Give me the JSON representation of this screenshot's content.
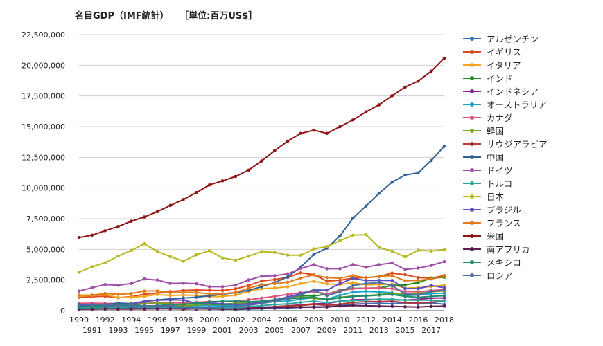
{
  "chart_data": {
    "type": "line",
    "title": "名目GDP（IMF統計）",
    "unit_label": "［単位:百万US$］",
    "xlabel": "",
    "ylabel": "",
    "ylim": [
      0,
      22500000
    ],
    "yticks": [
      0,
      2500000,
      5000000,
      7500000,
      10000000,
      12500000,
      15000000,
      17500000,
      20000000,
      22500000
    ],
    "ytick_labels": [
      "0",
      "2,500,000",
      "5,000,000",
      "7,500,000",
      "10,000,000",
      "12,500,000",
      "15,000,000",
      "17,500,000",
      "20,000,000",
      "22,500,000"
    ],
    "grid": true,
    "legend_position": "right",
    "x": [
      "1990",
      "1991",
      "1992",
      "1993",
      "1994",
      "1995",
      "1996",
      "1997",
      "1998",
      "1999",
      "2000",
      "2001",
      "2002",
      "2003",
      "2004",
      "2005",
      "2006",
      "2007",
      "2008",
      "2009",
      "2010",
      "2011",
      "2012",
      "2013",
      "2014",
      "2015",
      "2016",
      "2017",
      "2018"
    ],
    "series": [
      {
        "name": "アルゼンチン",
        "color": "#3a6fb4",
        "values": [
          141000,
          189000,
          229000,
          237000,
          257000,
          258000,
          272000,
          293000,
          299000,
          284000,
          284000,
          269000,
          98000,
          128000,
          153000,
          183000,
          214000,
          263000,
          329000,
          308000,
          424000,
          528000,
          580000,
          611000,
          564000,
          643000,
          555000,
          643000,
          518000
        ]
      },
      {
        "name": "イギリス",
        "color": "#dc4a1f",
        "values": [
          1090000,
          1140000,
          1180000,
          1060000,
          1140000,
          1340000,
          1420000,
          1560000,
          1650000,
          1690000,
          1660000,
          1640000,
          1780000,
          2050000,
          2420000,
          2540000,
          2710000,
          3090000,
          2930000,
          2410000,
          2480000,
          2660000,
          2700000,
          2780000,
          3060000,
          2930000,
          2690000,
          2660000,
          2860000
        ]
      },
      {
        "name": "イタリア",
        "color": "#f2a51e",
        "values": [
          1180000,
          1240000,
          1320000,
          1070000,
          1100000,
          1170000,
          1310000,
          1240000,
          1270000,
          1250000,
          1140000,
          1160000,
          1270000,
          1570000,
          1800000,
          1850000,
          1950000,
          2210000,
          2400000,
          2190000,
          2130000,
          2290000,
          2090000,
          2140000,
          2160000,
          1840000,
          1880000,
          1960000,
          2080000
        ]
      },
      {
        "name": "インド",
        "color": "#1b8a1b",
        "values": [
          320000,
          270000,
          290000,
          280000,
          330000,
          370000,
          400000,
          420000,
          420000,
          460000,
          470000,
          490000,
          520000,
          610000,
          710000,
          830000,
          940000,
          1220000,
          1200000,
          1340000,
          1680000,
          1820000,
          1830000,
          1860000,
          2040000,
          2100000,
          2290000,
          2650000,
          2720000
        ]
      },
      {
        "name": "インドネシア",
        "color": "#8b1f8b",
        "values": [
          130000,
          150000,
          160000,
          180000,
          200000,
          230000,
          250000,
          240000,
          110000,
          170000,
          180000,
          170000,
          210000,
          260000,
          280000,
          310000,
          400000,
          470000,
          560000,
          580000,
          760000,
          890000,
          920000,
          910000,
          890000,
          860000,
          930000,
          1020000,
          1040000
        ]
      },
      {
        "name": "オーストラリア",
        "color": "#19a2c8",
        "values": [
          320000,
          320000,
          320000,
          310000,
          340000,
          370000,
          410000,
          430000,
          380000,
          400000,
          420000,
          390000,
          420000,
          530000,
          660000,
          740000,
          780000,
          950000,
          1060000,
          930000,
          1250000,
          1510000,
          1560000,
          1530000,
          1460000,
          1240000,
          1270000,
          1390000,
          1430000
        ]
      },
      {
        "name": "カナダ",
        "color": "#e0527e",
        "values": [
          600000,
          610000,
          590000,
          580000,
          580000,
          600000,
          630000,
          650000,
          630000,
          680000,
          740000,
          740000,
          760000,
          890000,
          1020000,
          1170000,
          1320000,
          1470000,
          1550000,
          1370000,
          1610000,
          1790000,
          1830000,
          1850000,
          1800000,
          1560000,
          1530000,
          1650000,
          1710000
        ]
      },
      {
        "name": "韓国",
        "color": "#7ba41e",
        "values": [
          280000,
          330000,
          360000,
          390000,
          460000,
          570000,
          610000,
          570000,
          380000,
          490000,
          560000,
          530000,
          610000,
          680000,
          760000,
          900000,
          1010000,
          1120000,
          1000000,
          900000,
          1090000,
          1200000,
          1220000,
          1310000,
          1410000,
          1380000,
          1410000,
          1530000,
          1620000
        ]
      },
      {
        "name": "サウジアラビア",
        "color": "#b13434",
        "values": [
          120000,
          130000,
          140000,
          130000,
          130000,
          140000,
          160000,
          170000,
          150000,
          160000,
          190000,
          180000,
          190000,
          210000,
          260000,
          330000,
          380000,
          420000,
          520000,
          430000,
          530000,
          670000,
          740000,
          750000,
          760000,
          650000,
          640000,
          690000,
          780000
        ]
      },
      {
        "name": "中国",
        "color": "#336199",
        "values": [
          400000,
          420000,
          490000,
          620000,
          570000,
          740000,
          870000,
          970000,
          1030000,
          1100000,
          1210000,
          1340000,
          1470000,
          1660000,
          1960000,
          2290000,
          2750000,
          3550000,
          4590000,
          5100000,
          6090000,
          7550000,
          8530000,
          9570000,
          10480000,
          11060000,
          11230000,
          12240000,
          13410000
        ]
      },
      {
        "name": "ドイツ",
        "color": "#a04fa8",
        "values": [
          1600000,
          1870000,
          2130000,
          2070000,
          2210000,
          2590000,
          2500000,
          2220000,
          2240000,
          2200000,
          1950000,
          1950000,
          2080000,
          2500000,
          2810000,
          2850000,
          3000000,
          3440000,
          3750000,
          3420000,
          3420000,
          3760000,
          3540000,
          3750000,
          3890000,
          3360000,
          3470000,
          3690000,
          4000000
        ]
      },
      {
        "name": "トルコ",
        "color": "#2ba6a0",
        "values": [
          210000,
          200000,
          210000,
          240000,
          180000,
          230000,
          240000,
          250000,
          270000,
          250000,
          270000,
          200000,
          240000,
          310000,
          410000,
          500000,
          550000,
          680000,
          770000,
          650000,
          770000,
          830000,
          870000,
          950000,
          930000,
          860000,
          860000,
          850000,
          780000
        ]
      },
      {
        "name": "日本",
        "color": "#b8b820",
        "values": [
          3130000,
          3580000,
          3910000,
          4450000,
          4910000,
          5450000,
          4830000,
          4410000,
          4030000,
          4560000,
          4890000,
          4300000,
          4120000,
          4450000,
          4820000,
          4760000,
          4530000,
          4520000,
          5040000,
          5230000,
          5700000,
          6160000,
          6200000,
          5160000,
          4850000,
          4390000,
          4930000,
          4860000,
          4970000
        ]
      },
      {
        "name": "ブラジル",
        "color": "#5b4fc0",
        "values": [
          460000,
          400000,
          380000,
          430000,
          560000,
          770000,
          850000,
          880000,
          860000,
          600000,
          650000,
          560000,
          510000,
          560000,
          670000,
          890000,
          1110000,
          1400000,
          1690000,
          1670000,
          2210000,
          2620000,
          2460000,
          2470000,
          2460000,
          1800000,
          1800000,
          2060000,
          1870000
        ]
      },
      {
        "name": "フランス",
        "color": "#e07b1a",
        "values": [
          1270000,
          1270000,
          1400000,
          1330000,
          1390000,
          1600000,
          1610000,
          1460000,
          1510000,
          1490000,
          1360000,
          1380000,
          1490000,
          1840000,
          2120000,
          2200000,
          2320000,
          2660000,
          2920000,
          2690000,
          2650000,
          2860000,
          2680000,
          2810000,
          2850000,
          2440000,
          2470000,
          2590000,
          2780000
        ]
      },
      {
        "name": "米国",
        "color": "#8e1515",
        "values": [
          5960000,
          6160000,
          6520000,
          6860000,
          7290000,
          7640000,
          8070000,
          8580000,
          9060000,
          9630000,
          10250000,
          10580000,
          10940000,
          11460000,
          12210000,
          13040000,
          13820000,
          14450000,
          14710000,
          14450000,
          14990000,
          15540000,
          16200000,
          16780000,
          17520000,
          18220000,
          18710000,
          19520000,
          20580000
        ]
      },
      {
        "name": "南アフリカ",
        "color": "#5c1b52",
        "values": [
          120000,
          130000,
          140000,
          140000,
          140000,
          160000,
          150000,
          150000,
          140000,
          140000,
          140000,
          120000,
          120000,
          180000,
          230000,
          260000,
          270000,
          300000,
          290000,
          300000,
          380000,
          420000,
          400000,
          370000,
          350000,
          320000,
          300000,
          350000,
          370000
        ]
      },
      {
        "name": "メキシコ",
        "color": "#1f8a6a",
        "values": [
          300000,
          350000,
          400000,
          500000,
          530000,
          360000,
          410000,
          500000,
          530000,
          600000,
          710000,
          760000,
          770000,
          730000,
          780000,
          870000,
          970000,
          1040000,
          1100000,
          900000,
          1050000,
          1170000,
          1200000,
          1270000,
          1320000,
          1170000,
          1080000,
          1160000,
          1220000
        ]
      },
      {
        "name": "ロシア",
        "color": "#4e6e9e",
        "values": [
          520000,
          510000,
          460000,
          430000,
          400000,
          400000,
          390000,
          400000,
          270000,
          200000,
          260000,
          310000,
          350000,
          430000,
          590000,
          760000,
          990000,
          1300000,
          1660000,
          1220000,
          1520000,
          2050000,
          2210000,
          2290000,
          2060000,
          1360000,
          1280000,
          1570000,
          1660000
        ]
      }
    ]
  }
}
